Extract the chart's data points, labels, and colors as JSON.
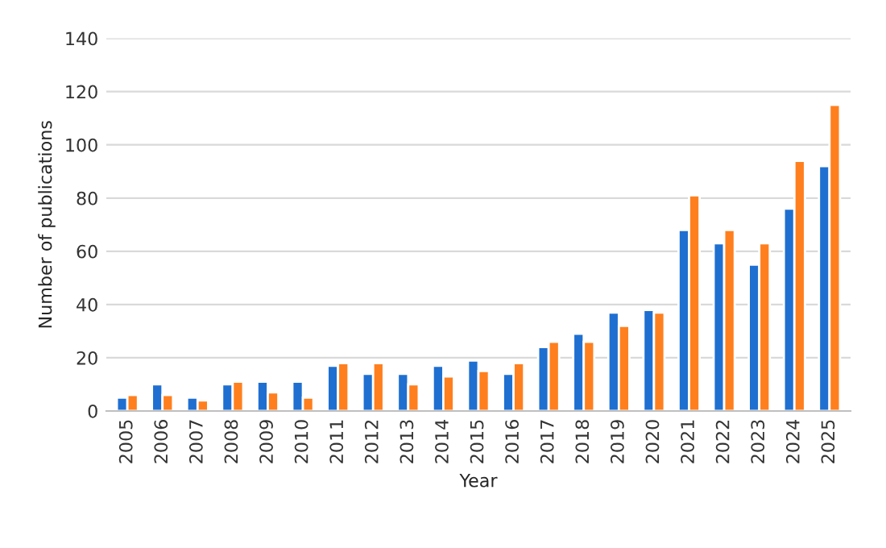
{
  "chart_data": {
    "type": "bar",
    "xlabel": "Year",
    "ylabel": "Number of publications",
    "categories": [
      "2005",
      "2006",
      "2007",
      "2008",
      "2009",
      "2010",
      "2011",
      "2012",
      "2013",
      "2014",
      "2015",
      "2016",
      "2017",
      "2018",
      "2019",
      "2020",
      "2021",
      "2022",
      "2023",
      "2024",
      "2025"
    ],
    "series": [
      {
        "color": "#1f6fd1",
        "values": [
          5,
          10,
          5,
          10,
          11,
          11,
          17,
          14,
          14,
          17,
          19,
          14,
          24,
          29,
          37,
          38,
          68,
          63,
          55,
          76,
          92
        ]
      },
      {
        "color": "#ff7f1e",
        "values": [
          6,
          6,
          4,
          11,
          7,
          5,
          18,
          18,
          10,
          13,
          15,
          18,
          26,
          26,
          32,
          37,
          81,
          68,
          63,
          94,
          115
        ]
      }
    ],
    "ylim": [
      0,
      140
    ],
    "yticks": [
      0,
      20,
      40,
      60,
      80,
      100,
      120,
      140
    ],
    "grid": "y"
  }
}
